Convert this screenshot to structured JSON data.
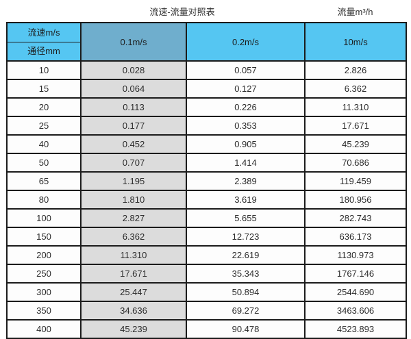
{
  "header": {
    "title": "流速-流量对照表",
    "unit_label": "流量m³/h"
  },
  "table": {
    "corner_top": "流速m/s",
    "corner_bottom": "通径mm",
    "speed_headers": [
      "0.1m/s",
      "0.2m/s",
      "10m/s"
    ],
    "rows": [
      {
        "diameter": "10",
        "values": [
          "0.028",
          "0.057",
          "2.826"
        ]
      },
      {
        "diameter": "15",
        "values": [
          "0.064",
          "0.127",
          "6.362"
        ]
      },
      {
        "diameter": "20",
        "values": [
          "0.113",
          "0.226",
          "11.310"
        ]
      },
      {
        "diameter": "25",
        "values": [
          "0.177",
          "0.353",
          "17.671"
        ]
      },
      {
        "diameter": "40",
        "values": [
          "0.452",
          "0.905",
          "45.239"
        ]
      },
      {
        "diameter": "50",
        "values": [
          "0.707",
          "1.414",
          "70.686"
        ]
      },
      {
        "diameter": "65",
        "values": [
          "1.195",
          "2.389",
          "119.459"
        ]
      },
      {
        "diameter": "80",
        "values": [
          "1.810",
          "3.619",
          "180.956"
        ]
      },
      {
        "diameter": "100",
        "values": [
          "2.827",
          "5.655",
          "282.743"
        ]
      },
      {
        "diameter": "150",
        "values": [
          "6.362",
          "12.723",
          "636.173"
        ]
      },
      {
        "diameter": "200",
        "values": [
          "11.310",
          "22.619",
          "1130.973"
        ]
      },
      {
        "diameter": "250",
        "values": [
          "17.671",
          "35.343",
          "1767.146"
        ]
      },
      {
        "diameter": "300",
        "values": [
          "25.447",
          "50.894",
          "2544.690"
        ]
      },
      {
        "diameter": "350",
        "values": [
          "34.636",
          "69.272",
          "3463.606"
        ]
      },
      {
        "diameter": "400",
        "values": [
          "45.239",
          "90.478",
          "4523.893"
        ]
      }
    ]
  },
  "colors": {
    "header_blue": "#55c6f2",
    "highlight_header": "#6faecd",
    "highlight_column": "#dcdcdc",
    "border": "#1b1b1b"
  },
  "chart_data": {
    "type": "table",
    "title": "流速-流量对照表",
    "unit_note": "流量m³/h",
    "columns": [
      "通径mm",
      "0.1m/s",
      "0.2m/s",
      "10m/s"
    ],
    "rows": [
      [
        10,
        0.028,
        0.057,
        2.826
      ],
      [
        15,
        0.064,
        0.127,
        6.362
      ],
      [
        20,
        0.113,
        0.226,
        11.31
      ],
      [
        25,
        0.177,
        0.353,
        17.671
      ],
      [
        40,
        0.452,
        0.905,
        45.239
      ],
      [
        50,
        0.707,
        1.414,
        70.686
      ],
      [
        65,
        1.195,
        2.389,
        119.459
      ],
      [
        80,
        1.81,
        3.619,
        180.956
      ],
      [
        100,
        2.827,
        5.655,
        282.743
      ],
      [
        150,
        6.362,
        12.723,
        636.173
      ],
      [
        200,
        11.31,
        22.619,
        1130.973
      ],
      [
        250,
        17.671,
        35.343,
        1767.146
      ],
      [
        300,
        25.447,
        50.894,
        2544.69
      ],
      [
        350,
        34.636,
        69.272,
        3463.606
      ],
      [
        400,
        45.239,
        90.478,
        4523.893
      ]
    ]
  }
}
